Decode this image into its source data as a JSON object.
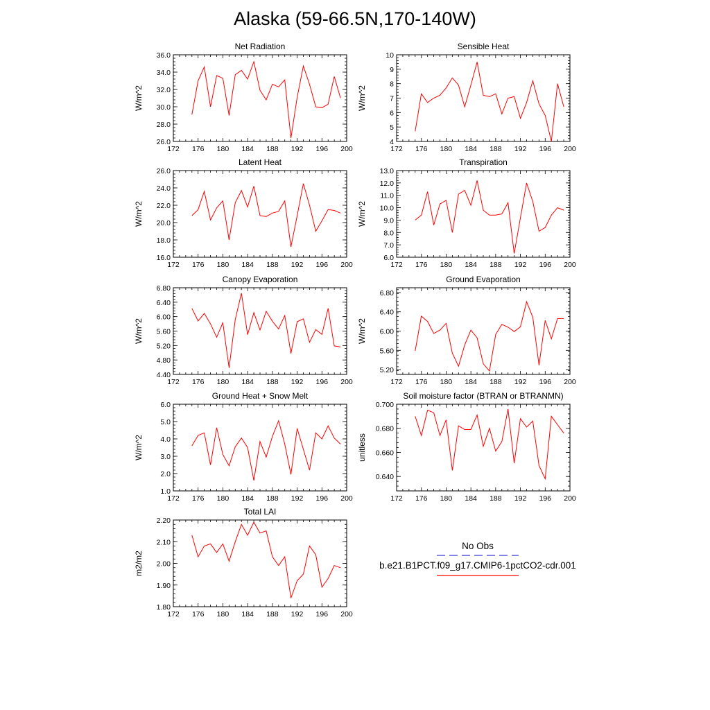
{
  "title": "Alaska (59-66.5N,170-140W)",
  "legend": {
    "obs_label": "No Obs",
    "obs_color": "#3b3bd6",
    "model_label": "b.e21.B1PCT.f09_g17.CMIP6-1pctCO2-cdr.001",
    "model_color": "#ff0000"
  },
  "chart_data": [
    {
      "type": "line",
      "title": "Net Radiation",
      "ylabel": "W/m^2",
      "xlim": [
        172,
        200
      ],
      "ylim": [
        26,
        36
      ],
      "xticks": [
        172,
        176,
        180,
        184,
        188,
        192,
        196,
        200
      ],
      "yticks": [
        "26.0",
        "28.0",
        "30.0",
        "32.0",
        "34.0",
        "36.0"
      ],
      "x": [
        175,
        176,
        177,
        178,
        179,
        180,
        181,
        182,
        183,
        184,
        185,
        186,
        187,
        188,
        189,
        190,
        191,
        192,
        193,
        194,
        195,
        196,
        197,
        198,
        199
      ],
      "series": [
        {
          "values": [
            29.1,
            33.0,
            34.6,
            30.0,
            33.6,
            33.3,
            29.0,
            33.7,
            34.2,
            33.2,
            35.2,
            31.9,
            30.8,
            32.6,
            32.3,
            33.1,
            26.4,
            31.1,
            34.7,
            32.6,
            30.0,
            29.9,
            30.3,
            33.5,
            31.0
          ]
        }
      ]
    },
    {
      "type": "line",
      "title": "Sensible Heat",
      "ylabel": "W/m^2",
      "xlim": [
        172,
        200
      ],
      "ylim": [
        4,
        10
      ],
      "xticks": [
        172,
        176,
        180,
        184,
        188,
        192,
        196,
        200
      ],
      "yticks": [
        "4",
        "5",
        "6",
        "7",
        "8",
        "9",
        "10"
      ],
      "x": [
        175,
        176,
        177,
        178,
        179,
        180,
        181,
        182,
        183,
        184,
        185,
        186,
        187,
        188,
        189,
        190,
        191,
        192,
        193,
        194,
        195,
        196,
        197,
        198,
        199
      ],
      "series": [
        {
          "values": [
            4.7,
            7.3,
            6.7,
            7.0,
            7.2,
            7.7,
            8.4,
            7.9,
            6.4,
            7.9,
            9.5,
            7.2,
            7.1,
            7.3,
            5.9,
            7.0,
            7.1,
            5.6,
            6.7,
            8.2,
            6.6,
            5.8,
            4.0,
            8.0,
            6.4
          ]
        }
      ]
    },
    {
      "type": "line",
      "title": "Latent Heat",
      "ylabel": "W/m^2",
      "xlim": [
        172,
        200
      ],
      "ylim": [
        16,
        26
      ],
      "xticks": [
        172,
        176,
        180,
        184,
        188,
        192,
        196,
        200
      ],
      "yticks": [
        "16.0",
        "18.0",
        "20.0",
        "22.0",
        "24.0",
        "26.0"
      ],
      "x": [
        175,
        176,
        177,
        178,
        179,
        180,
        181,
        182,
        183,
        184,
        185,
        186,
        187,
        188,
        189,
        190,
        191,
        192,
        193,
        194,
        195,
        196,
        197,
        198,
        199
      ],
      "series": [
        {
          "values": [
            20.8,
            21.5,
            23.6,
            20.3,
            21.7,
            22.5,
            18.0,
            22.3,
            23.7,
            21.8,
            24.2,
            20.8,
            20.7,
            21.1,
            21.3,
            22.5,
            17.2,
            20.8,
            24.5,
            22.0,
            19.0,
            20.2,
            21.5,
            21.4,
            21.1
          ]
        }
      ]
    },
    {
      "type": "line",
      "title": "Transpiration",
      "ylabel": "W/m^2",
      "xlim": [
        172,
        200
      ],
      "ylim": [
        6,
        13
      ],
      "xticks": [
        172,
        176,
        180,
        184,
        188,
        192,
        196,
        200
      ],
      "yticks": [
        "6.0",
        "7.0",
        "8.0",
        "9.0",
        "10.0",
        "11.0",
        "12.0",
        "13.0"
      ],
      "x": [
        175,
        176,
        177,
        178,
        179,
        180,
        181,
        182,
        183,
        184,
        185,
        186,
        187,
        188,
        189,
        190,
        191,
        192,
        193,
        194,
        195,
        196,
        197,
        198,
        199
      ],
      "series": [
        {
          "values": [
            9.0,
            9.4,
            11.3,
            8.6,
            10.3,
            10.6,
            8.0,
            11.1,
            11.4,
            10.2,
            12.2,
            9.8,
            9.4,
            9.4,
            9.5,
            10.4,
            6.3,
            9.2,
            12.0,
            10.5,
            8.1,
            8.4,
            9.4,
            10.0,
            9.8
          ]
        }
      ]
    },
    {
      "type": "line",
      "title": "Canopy Evaporation",
      "ylabel": "W/m^2",
      "xlim": [
        172,
        200
      ],
      "ylim": [
        4.4,
        6.8
      ],
      "xticks": [
        172,
        176,
        180,
        184,
        188,
        192,
        196,
        200
      ],
      "yticks": [
        "4.40",
        "4.80",
        "5.20",
        "5.60",
        "6.00",
        "6.40",
        "6.80"
      ],
      "x": [
        175,
        176,
        177,
        178,
        179,
        180,
        181,
        182,
        183,
        184,
        185,
        186,
        187,
        188,
        189,
        190,
        191,
        192,
        193,
        194,
        195,
        196,
        197,
        198,
        199
      ],
      "series": [
        {
          "values": [
            6.23,
            5.88,
            6.09,
            5.8,
            5.43,
            5.83,
            4.58,
            5.92,
            6.65,
            5.5,
            6.11,
            5.63,
            6.15,
            5.87,
            5.66,
            6.03,
            4.98,
            5.86,
            5.94,
            5.29,
            5.64,
            5.51,
            6.23,
            5.19,
            5.16
          ]
        }
      ]
    },
    {
      "type": "line",
      "title": "Ground Evaporation",
      "ylabel": "W/m^2",
      "xlim": [
        172,
        200
      ],
      "ylim": [
        5.1,
        6.9
      ],
      "xticks": [
        172,
        176,
        180,
        184,
        188,
        192,
        196,
        200
      ],
      "yticks": [
        "5.20",
        "5.60",
        "6.00",
        "6.40",
        "6.80"
      ],
      "x": [
        175,
        176,
        177,
        178,
        179,
        180,
        181,
        182,
        183,
        184,
        185,
        186,
        187,
        188,
        189,
        190,
        191,
        192,
        193,
        194,
        195,
        196,
        197,
        198,
        199
      ],
      "series": [
        {
          "values": [
            5.59,
            6.31,
            6.2,
            5.95,
            6.02,
            6.16,
            5.54,
            5.27,
            5.71,
            6.02,
            5.86,
            5.32,
            5.17,
            5.93,
            6.14,
            6.08,
            5.99,
            6.09,
            6.61,
            6.29,
            5.29,
            6.22,
            5.84,
            6.26,
            6.26
          ]
        }
      ]
    },
    {
      "type": "line",
      "title": "Ground Heat + Snow Melt",
      "ylabel": "W/m^2",
      "xlim": [
        172,
        200
      ],
      "ylim": [
        1,
        6
      ],
      "xticks": [
        172,
        176,
        180,
        184,
        188,
        192,
        196,
        200
      ],
      "yticks": [
        "1.0",
        "2.0",
        "3.0",
        "4.0",
        "5.0",
        "6.0"
      ],
      "x": [
        175,
        176,
        177,
        178,
        179,
        180,
        181,
        182,
        183,
        184,
        185,
        186,
        187,
        188,
        189,
        190,
        191,
        192,
        193,
        194,
        195,
        196,
        197,
        198,
        199
      ],
      "series": [
        {
          "values": [
            3.6,
            4.2,
            4.35,
            2.5,
            4.65,
            3.1,
            2.45,
            3.55,
            4.05,
            3.5,
            1.6,
            3.85,
            2.95,
            4.15,
            5.05,
            3.7,
            1.95,
            4.6,
            3.4,
            2.2,
            4.35,
            4.0,
            4.75,
            4.05,
            3.7
          ]
        }
      ]
    },
    {
      "type": "line",
      "title": "Soil moisture factor (BTRAN or BTRANMN)",
      "ylabel": "unitless",
      "xlim": [
        172,
        200
      ],
      "ylim": [
        0.628,
        0.7
      ],
      "xticks": [
        172,
        176,
        180,
        184,
        188,
        192,
        196,
        200
      ],
      "yticks": [
        "0.640",
        "0.660",
        "0.680",
        "0.700"
      ],
      "x": [
        175,
        176,
        177,
        178,
        179,
        180,
        181,
        182,
        183,
        184,
        185,
        186,
        187,
        188,
        189,
        190,
        191,
        192,
        193,
        194,
        195,
        196,
        197,
        198,
        199
      ],
      "series": [
        {
          "values": [
            0.69,
            0.674,
            0.695,
            0.693,
            0.674,
            0.687,
            0.645,
            0.682,
            0.679,
            0.679,
            0.691,
            0.665,
            0.68,
            0.661,
            0.669,
            0.696,
            0.651,
            0.688,
            0.681,
            0.686,
            0.649,
            0.638,
            0.69,
            0.683,
            0.676
          ]
        }
      ]
    },
    {
      "type": "line",
      "title": "Total LAI",
      "ylabel": "m2/m2",
      "xlim": [
        172,
        200
      ],
      "ylim": [
        1.8,
        2.2
      ],
      "xticks": [
        172,
        176,
        180,
        184,
        188,
        192,
        196,
        200
      ],
      "yticks": [
        "1.80",
        "1.90",
        "2.00",
        "2.10",
        "2.20"
      ],
      "x": [
        175,
        176,
        177,
        178,
        179,
        180,
        181,
        182,
        183,
        184,
        185,
        186,
        187,
        188,
        189,
        190,
        191,
        192,
        193,
        194,
        195,
        196,
        197,
        198,
        199
      ],
      "series": [
        {
          "values": [
            2.13,
            2.03,
            2.08,
            2.09,
            2.05,
            2.09,
            2.01,
            2.1,
            2.18,
            2.13,
            2.19,
            2.14,
            2.15,
            2.03,
            1.99,
            2.03,
            1.84,
            1.92,
            1.95,
            2.08,
            2.04,
            1.89,
            1.93,
            1.99,
            1.98
          ]
        }
      ]
    }
  ]
}
